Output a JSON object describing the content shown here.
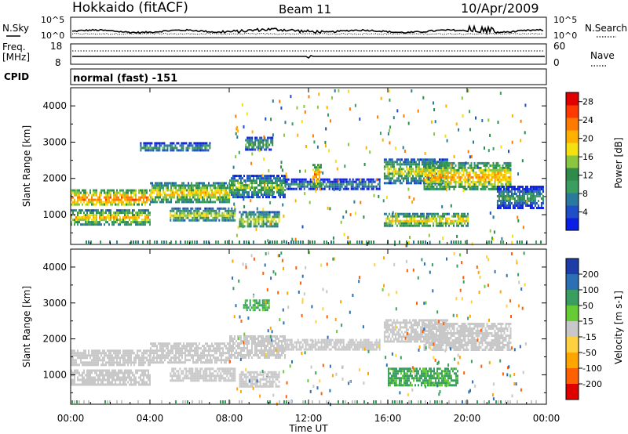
{
  "header": {
    "station": "Hokkaido (fitACF)",
    "beam": "Beam 11",
    "date": "10/Apr/2009"
  },
  "noise_panel": {
    "left_label": "N.Sky",
    "right_label": "N.Search",
    "ticks": [
      "10^5",
      "10^0"
    ]
  },
  "freq_panel": {
    "left_label_line1": "Freq.",
    "left_label_line2": "[MHz]",
    "left_ticks": [
      "18",
      "8"
    ],
    "right_label": "Nave",
    "right_ticks": [
      "60",
      "0"
    ]
  },
  "cpid_panel": {
    "label": "CPID",
    "mode": "normal (fast) -151"
  },
  "chart_data": [
    {
      "type": "heatmap",
      "name": "power",
      "xlabel": "Time UT",
      "ylabel": "Slant Range [km]",
      "colorbar_label": "Power [dB]",
      "x_ticks": [
        "00:00",
        "04:00",
        "08:00",
        "12:00",
        "16:00",
        "20:00",
        "00:00"
      ],
      "y_ticks": [
        "1000",
        "2000",
        "3000",
        "4000"
      ],
      "xlim": [
        0,
        24
      ],
      "ylim": [
        180,
        4500
      ],
      "colorbar_ticks": [
        "4",
        "8",
        "12",
        "16",
        "20",
        "24",
        "28"
      ],
      "colorbar_range": [
        0,
        30
      ],
      "colorbar_colors": [
        "#0a1ee6",
        "#1e4fc6",
        "#2a7a9e",
        "#3a9e60",
        "#2e8b4a",
        "#8cc63e",
        "#f5e010",
        "#ffb000",
        "#ff7a00",
        "#ff3a00",
        "#e00000"
      ],
      "echo_bands": [
        {
          "t0": 0.0,
          "t1": 4.0,
          "r0": 1250,
          "r1": 1700,
          "level": 24
        },
        {
          "t0": 0.0,
          "t1": 4.0,
          "r0": 750,
          "r1": 1150,
          "level": 20
        },
        {
          "t0": 4.0,
          "t1": 8.0,
          "r0": 1350,
          "r1": 1900,
          "level": 20
        },
        {
          "t0": 5.0,
          "t1": 8.3,
          "r0": 850,
          "r1": 1200,
          "level": 18
        },
        {
          "t0": 8.0,
          "t1": 10.8,
          "r0": 1500,
          "r1": 2100,
          "level": 16
        },
        {
          "t0": 8.5,
          "t1": 10.5,
          "r0": 650,
          "r1": 1100,
          "level": 18
        },
        {
          "t0": 3.5,
          "t1": 7.0,
          "r0": 2750,
          "r1": 3000,
          "level": 12
        },
        {
          "t0": 8.8,
          "t1": 10.2,
          "r0": 2800,
          "r1": 3150,
          "level": 14
        },
        {
          "t0": 10.8,
          "t1": 15.6,
          "r0": 1700,
          "r1": 2000,
          "level": 10
        },
        {
          "t0": 12.2,
          "t1": 12.6,
          "r0": 1800,
          "r1": 2400,
          "level": 24
        },
        {
          "t0": 15.8,
          "t1": 19.0,
          "r0": 1900,
          "r1": 2550,
          "level": 18
        },
        {
          "t0": 17.8,
          "t1": 22.2,
          "r0": 1700,
          "r1": 2450,
          "level": 22
        },
        {
          "t0": 21.5,
          "t1": 23.8,
          "r0": 1200,
          "r1": 1800,
          "level": 12
        },
        {
          "t0": 15.8,
          "t1": 20.0,
          "r0": 700,
          "r1": 1050,
          "level": 20
        }
      ]
    },
    {
      "type": "heatmap",
      "name": "velocity",
      "xlabel": "Time UT",
      "ylabel": "Slant Range [km]",
      "colorbar_label": "Velocity [m s-1]",
      "x_ticks": [
        "00:00",
        "04:00",
        "08:00",
        "12:00",
        "16:00",
        "20:00",
        "00:00"
      ],
      "y_ticks": [
        "1000",
        "2000",
        "3000",
        "4000"
      ],
      "xlim": [
        0,
        24
      ],
      "ylim": [
        180,
        4500
      ],
      "colorbar_ticks": [
        "200",
        "100",
        "50",
        "15",
        "-15",
        "-50",
        "-100",
        "-200"
      ],
      "colorbar_colors": [
        "#1e3ca8",
        "#2d6fb5",
        "#3a9e60",
        "#66cc33",
        "#c8c8c8",
        "#ffd040",
        "#ffa500",
        "#ff6000",
        "#e00000"
      ],
      "echo_bands": [
        {
          "t0": 0.0,
          "t1": 4.0,
          "r0": 1250,
          "r1": 1700,
          "level": 0
        },
        {
          "t0": 0.0,
          "t1": 4.0,
          "r0": 750,
          "r1": 1150,
          "level": 0
        },
        {
          "t0": 4.0,
          "t1": 8.0,
          "r0": 1350,
          "r1": 1900,
          "level": 0
        },
        {
          "t0": 5.0,
          "t1": 8.3,
          "r0": 850,
          "r1": 1200,
          "level": 0
        },
        {
          "t0": 8.0,
          "t1": 10.8,
          "r0": 1500,
          "r1": 2100,
          "level": 0
        },
        {
          "t0": 8.5,
          "t1": 10.5,
          "r0": 650,
          "r1": 1100,
          "level": 0
        },
        {
          "t0": 10.8,
          "t1": 15.6,
          "r0": 1700,
          "r1": 2000,
          "level": 0
        },
        {
          "t0": 15.8,
          "t1": 19.0,
          "r0": 1900,
          "r1": 2550,
          "level": 0
        },
        {
          "t0": 17.8,
          "t1": 22.2,
          "r0": 1700,
          "r1": 2450,
          "level": 0
        },
        {
          "t0": 16.0,
          "t1": 19.5,
          "r0": 700,
          "r1": 1200,
          "level": 40
        },
        {
          "t0": 8.7,
          "t1": 10.0,
          "r0": 2800,
          "r1": 3100,
          "level": 40
        }
      ]
    }
  ]
}
